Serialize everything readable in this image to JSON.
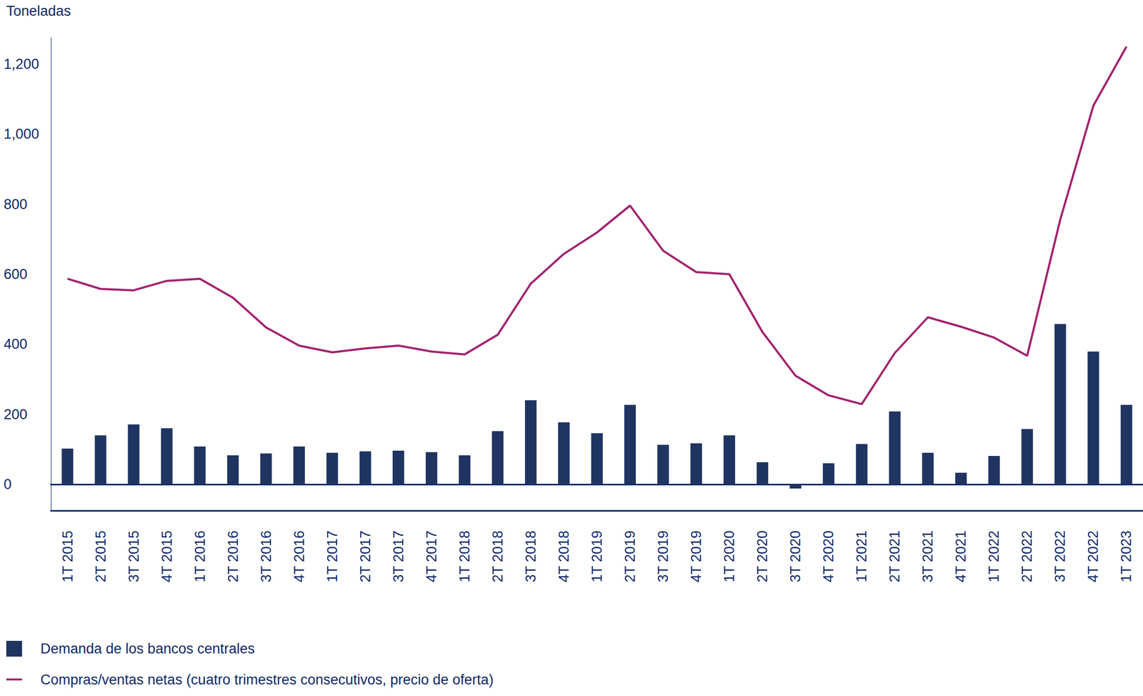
{
  "chart_data": {
    "type": "bar",
    "y_label": "Toneladas",
    "categories": [
      "1T 2015",
      "2T 2015",
      "3T 2015",
      "4T 2015",
      "1T 2016",
      "2T 2016",
      "3T 2016",
      "4T 2016",
      "1T 2017",
      "2T 2017",
      "3T 2017",
      "4T 2017",
      "1T 2018",
      "2T 2018",
      "3T 2018",
      "4T 2018",
      "1T 2019",
      "2T 2019",
      "3T 2019",
      "4T 2019",
      "1T 2020",
      "2T 2020",
      "3T 2020",
      "4T 2020",
      "1T 2021",
      "2T 2021",
      "3T 2021",
      "4T 2021",
      "1T 2022",
      "2T 2022",
      "3T 2022",
      "4T 2022",
      "1T 2023"
    ],
    "series": [
      {
        "name": "Demanda de los bancos centrales",
        "type": "bar",
        "color": "#1f3461",
        "values": [
          102,
          140,
          171,
          160,
          108,
          83,
          88,
          108,
          90,
          94,
          96,
          92,
          83,
          152,
          240,
          177,
          146,
          227,
          113,
          117,
          140,
          63,
          -12,
          60,
          115,
          208,
          90,
          33,
          81,
          158,
          458,
          379,
          227
        ]
      },
      {
        "name": "Compras/ventas netas (cuatro trimestres consecutivos, precio de oferta)",
        "type": "line",
        "color": "#a3226f",
        "values": [
          587,
          558,
          554,
          581,
          587,
          533,
          448,
          396,
          377,
          388,
          396,
          379,
          371,
          427,
          573,
          658,
          719,
          796,
          667,
          606,
          600,
          435,
          310,
          254,
          229,
          375,
          477,
          450,
          419,
          367,
          756,
          1081,
          1250
        ]
      }
    ],
    "ylim": [
      -75,
      1275
    ],
    "yticks": [
      0,
      200,
      400,
      600,
      800,
      {
        "value": 1000,
        "label": "1,000"
      },
      {
        "value": 1200,
        "label": "1,200"
      }
    ],
    "grid": false,
    "legend": "bottom-left"
  }
}
